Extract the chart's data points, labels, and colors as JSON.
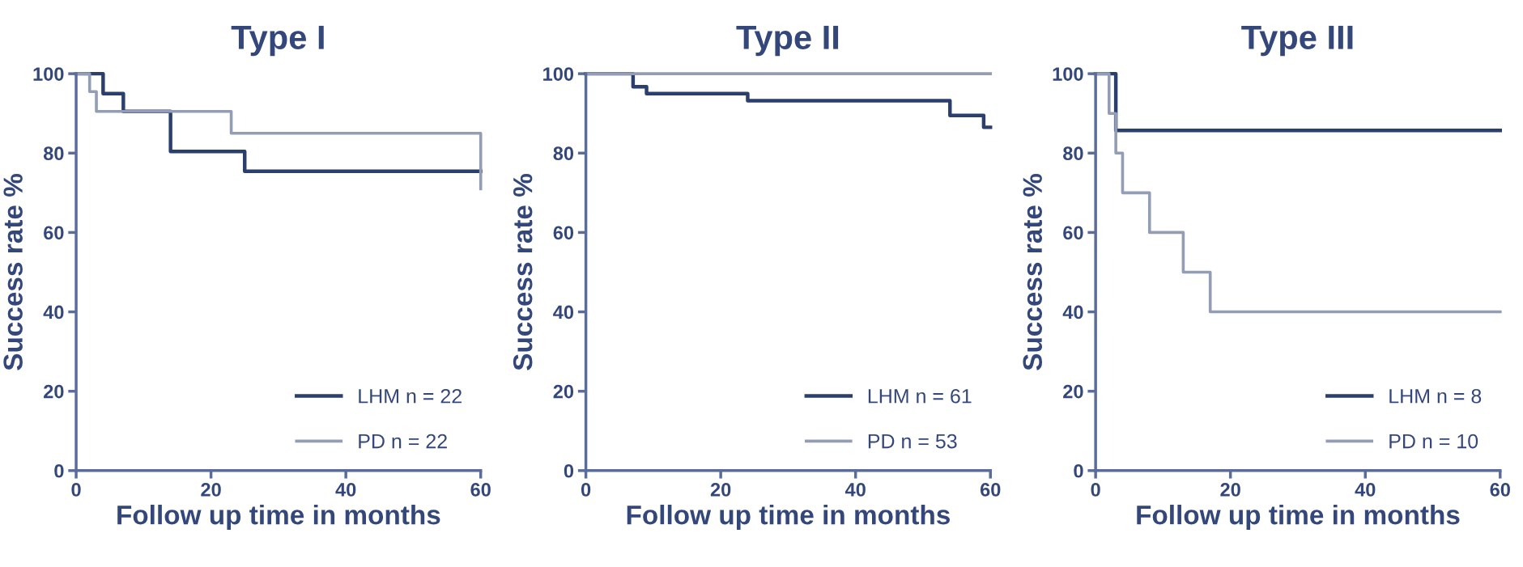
{
  "chart_data": [
    {
      "type": "step",
      "title": "Type I",
      "xlabel": "Follow up time in months",
      "ylabel": "Success rate %",
      "xlim": [
        0,
        60
      ],
      "ylim": [
        0,
        100
      ],
      "xticks": [
        0,
        20,
        40,
        60
      ],
      "yticks": [
        0,
        20,
        40,
        60,
        80,
        100
      ],
      "legend": "bottom right",
      "grid": false,
      "series": [
        {
          "name": "LHM n = 22",
          "color": "#2b3f6e",
          "x": [
            0,
            4,
            7,
            14,
            25,
            60
          ],
          "values": [
            100,
            95,
            90.5,
            80.4,
            75.4,
            75.4
          ]
        },
        {
          "name": "PD n = 22",
          "color": "#939db5",
          "x": [
            0,
            2,
            3,
            23,
            60,
            60
          ],
          "values": [
            100,
            95.5,
            90.5,
            85,
            85,
            71
          ]
        }
      ]
    },
    {
      "type": "step",
      "title": "Type II",
      "xlabel": "Follow up time in months",
      "ylabel": "Success rate %",
      "xlim": [
        0,
        60
      ],
      "ylim": [
        0,
        100
      ],
      "xticks": [
        0,
        20,
        40,
        60
      ],
      "yticks": [
        0,
        20,
        40,
        60,
        80,
        100
      ],
      "legend": "bottom right",
      "grid": false,
      "series": [
        {
          "name": "LHM n = 61",
          "color": "#2b3f6e",
          "x": [
            0,
            7,
            9,
            24,
            54,
            59,
            60
          ],
          "values": [
            100,
            96.7,
            95,
            93.2,
            89.5,
            86.5,
            86.5
          ]
        },
        {
          "name": "PD n = 53",
          "color": "#939db5",
          "x": [
            0,
            60
          ],
          "values": [
            100,
            100
          ]
        }
      ]
    },
    {
      "type": "step",
      "title": "Type III",
      "xlabel": "Follow up time in months",
      "ylabel": "Success rate %",
      "xlim": [
        0,
        60
      ],
      "ylim": [
        0,
        100
      ],
      "xticks": [
        0,
        20,
        40,
        60
      ],
      "yticks": [
        0,
        20,
        40,
        60,
        80,
        100
      ],
      "legend": "bottom right",
      "grid": false,
      "series": [
        {
          "name": "LHM n = 8",
          "color": "#2b3f6e",
          "x": [
            0,
            3,
            60
          ],
          "values": [
            100,
            85.7,
            85.7
          ]
        },
        {
          "name": "PD n = 10",
          "color": "#939db5",
          "x": [
            0,
            2,
            3,
            4,
            8,
            13,
            17,
            60
          ],
          "values": [
            100,
            90,
            80,
            70,
            60,
            50,
            40,
            40
          ]
        }
      ]
    }
  ]
}
